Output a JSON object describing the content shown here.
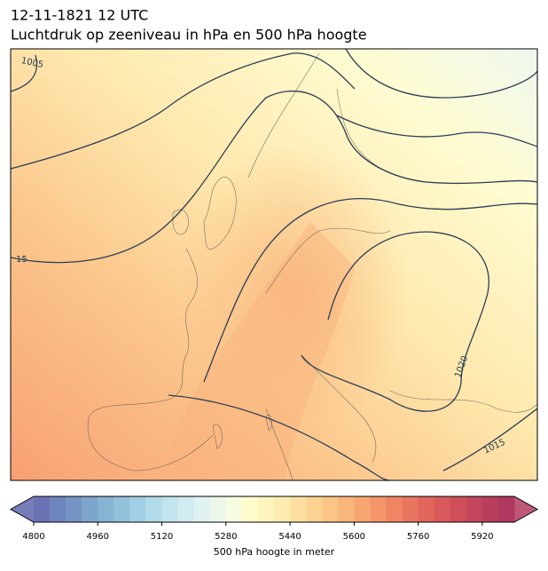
{
  "header": {
    "title": "12-11-1821 12 UTC",
    "subtitle": "Luchtdruk op zeeniveau in hPa en 500 hPa hoogte"
  },
  "map": {
    "contour_labels": [
      "1005",
      "15",
      "1020",
      "1015"
    ]
  },
  "colorbar": {
    "label": "500 hPa hoogte in meter",
    "range": [
      4800,
      6000
    ],
    "ticks": [
      4800,
      4960,
      5120,
      5280,
      5440,
      5600,
      5760,
      5920
    ],
    "under_color": "#5f66ad",
    "over_color": "#b23b5e",
    "colors": [
      "#6b73b5",
      "#6e84bd",
      "#7594c4",
      "#7ea5cb",
      "#88b4d3",
      "#94c2db",
      "#a2cfe3",
      "#b1dbe9",
      "#c1e4ee",
      "#d1ecf1",
      "#e0f2f0",
      "#edf7ec",
      "#f7fbe0",
      "#fffbcc",
      "#fff4be",
      "#feebb0",
      "#fde0a1",
      "#fcd393",
      "#fbc586",
      "#f9b67b",
      "#f7a672",
      "#f4966a",
      "#ef8563",
      "#e9755f",
      "#e1665b",
      "#d85a5a",
      "#ce4e5a",
      "#c3465c",
      "#b93e5e",
      "#b0375f"
    ]
  }
}
